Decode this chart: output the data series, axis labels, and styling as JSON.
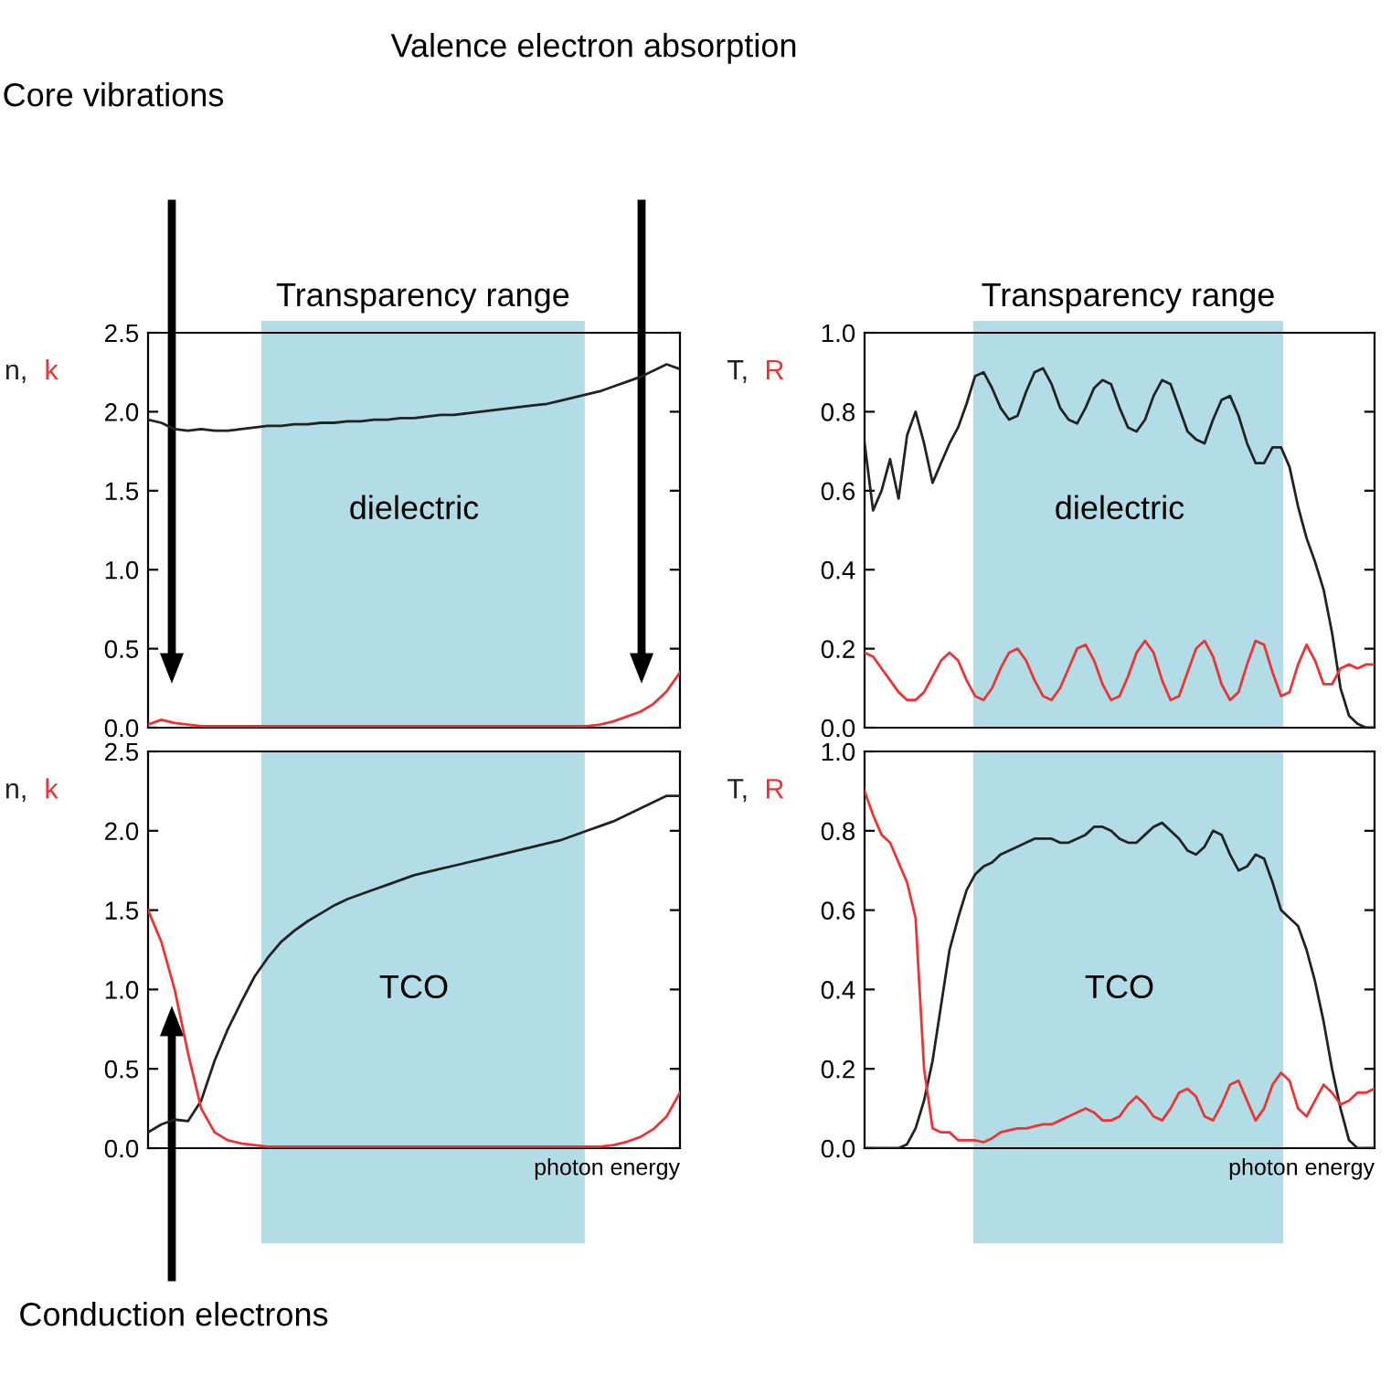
{
  "chart_data": [
    {
      "type": "line",
      "ylabel": "n, k",
      "categories": [
        null,
        null,
        null,
        null,
        null,
        null,
        null,
        null,
        null,
        null,
        null,
        null,
        null,
        null,
        null,
        null,
        null,
        null,
        null,
        null,
        null,
        null,
        null,
        null,
        null,
        null,
        null,
        null,
        null,
        null,
        null,
        null,
        null,
        null,
        null,
        null,
        null,
        null,
        null,
        null,
        null
      ],
      "series": [
        {
          "color": "#222222",
          "values": [
            1.95,
            1.93,
            1.89,
            1.88,
            1.89,
            1.88,
            1.88,
            1.89,
            1.9,
            1.91,
            1.91,
            1.92,
            1.92,
            1.93,
            1.93,
            1.94,
            1.94,
            1.95,
            1.95,
            1.96,
            1.96,
            1.97,
            1.98,
            1.98,
            1.99,
            2.0,
            2.01,
            2.02,
            2.03,
            2.04,
            2.05,
            2.07,
            2.09,
            2.11,
            2.13,
            2.16,
            2.19,
            2.22,
            2.26,
            2.3,
            2.27
          ]
        },
        {
          "color": "#ee3333",
          "values": [
            0.02,
            0.05,
            0.03,
            0.02,
            0.01,
            0.01,
            0.01,
            0.01,
            0.01,
            0.01,
            0.01,
            0.01,
            0.01,
            0.01,
            0.01,
            0.01,
            0.01,
            0.01,
            0.01,
            0.01,
            0.01,
            0.01,
            0.01,
            0.01,
            0.01,
            0.01,
            0.01,
            0.01,
            0.01,
            0.01,
            0.01,
            0.01,
            0.01,
            0.01,
            0.02,
            0.04,
            0.07,
            0.1,
            0.15,
            0.23,
            0.35
          ]
        }
      ],
      "ylim": [
        0,
        2.5
      ],
      "yticks": [
        {
          "value": 0,
          "label": "0.0"
        },
        0.5,
        {
          "value": 1,
          "label": "1.0"
        },
        1.5,
        {
          "value": 2,
          "label": "2.0"
        },
        2.5
      ],
      "tick_labels": "y",
      "annotations": [
        "Core vibrations",
        "Valence electron absorption",
        "Transparency range",
        "dielectric"
      ]
    },
    {
      "type": "line",
      "ylabel": "T, R",
      "categories": [
        null,
        null,
        null,
        null,
        null,
        null,
        null,
        null,
        null,
        null,
        null,
        null,
        null,
        null,
        null,
        null,
        null,
        null,
        null,
        null,
        null,
        null,
        null,
        null,
        null,
        null,
        null,
        null,
        null,
        null,
        null,
        null,
        null,
        null,
        null,
        null,
        null,
        null,
        null,
        null,
        null,
        null,
        null,
        null,
        null,
        null,
        null,
        null,
        null,
        null,
        null,
        null,
        null,
        null,
        null,
        null,
        null,
        null,
        null,
        null,
        null
      ],
      "series": [
        {
          "color": "#222222",
          "values": [
            0.72,
            0.55,
            0.6,
            0.68,
            0.58,
            0.74,
            0.8,
            0.72,
            0.62,
            0.67,
            0.72,
            0.76,
            0.82,
            0.89,
            0.9,
            0.86,
            0.81,
            0.78,
            0.79,
            0.85,
            0.9,
            0.91,
            0.87,
            0.81,
            0.78,
            0.77,
            0.81,
            0.86,
            0.88,
            0.87,
            0.81,
            0.76,
            0.75,
            0.78,
            0.84,
            0.88,
            0.87,
            0.81,
            0.75,
            0.73,
            0.72,
            0.78,
            0.83,
            0.84,
            0.79,
            0.72,
            0.67,
            0.67,
            0.71,
            0.71,
            0.66,
            0.56,
            0.48,
            0.42,
            0.35,
            0.24,
            0.1,
            0.03,
            0.01,
            0,
            0
          ]
        },
        {
          "color": "#ee3333",
          "values": [
            0.19,
            0.18,
            0.15,
            0.12,
            0.09,
            0.07,
            0.07,
            0.09,
            0.13,
            0.17,
            0.19,
            0.17,
            0.12,
            0.08,
            0.07,
            0.1,
            0.15,
            0.19,
            0.2,
            0.17,
            0.12,
            0.08,
            0.07,
            0.1,
            0.15,
            0.2,
            0.21,
            0.17,
            0.11,
            0.07,
            0.08,
            0.13,
            0.19,
            0.22,
            0.19,
            0.12,
            0.07,
            0.08,
            0.14,
            0.2,
            0.22,
            0.18,
            0.11,
            0.07,
            0.09,
            0.16,
            0.22,
            0.21,
            0.14,
            0.08,
            0.09,
            0.16,
            0.21,
            0.17,
            0.11,
            0.11,
            0.15,
            0.16,
            0.15,
            0.16,
            0.16
          ]
        }
      ],
      "ylim": [
        0,
        1
      ],
      "yticks": [
        {
          "value": 0,
          "label": "0.0"
        },
        0.2,
        0.4,
        0.6,
        0.8,
        {
          "value": 1,
          "label": "1.0"
        }
      ],
      "tick_labels": "y",
      "annotations": [
        "Transparency range",
        "dielectric"
      ]
    },
    {
      "type": "line",
      "ylabel": "n, k",
      "xlabel": "photon energy",
      "categories": [
        null,
        null,
        null,
        null,
        null,
        null,
        null,
        null,
        null,
        null,
        null,
        null,
        null,
        null,
        null,
        null,
        null,
        null,
        null,
        null,
        null,
        null,
        null,
        null,
        null,
        null,
        null,
        null,
        null,
        null,
        null,
        null,
        null,
        null,
        null,
        null,
        null,
        null,
        null,
        null,
        null
      ],
      "series": [
        {
          "color": "#222222",
          "values": [
            0.1,
            0.15,
            0.18,
            0.17,
            0.3,
            0.55,
            0.75,
            0.92,
            1.08,
            1.2,
            1.3,
            1.37,
            1.43,
            1.48,
            1.53,
            1.57,
            1.6,
            1.63,
            1.66,
            1.69,
            1.72,
            1.74,
            1.76,
            1.78,
            1.8,
            1.82,
            1.84,
            1.86,
            1.88,
            1.9,
            1.92,
            1.94,
            1.97,
            2.0,
            2.03,
            2.06,
            2.1,
            2.14,
            2.18,
            2.22,
            2.22
          ]
        },
        {
          "color": "#ee3333",
          "values": [
            1.5,
            1.3,
            1.0,
            0.6,
            0.25,
            0.1,
            0.05,
            0.03,
            0.02,
            0.01,
            0.01,
            0.01,
            0.01,
            0.01,
            0.01,
            0.01,
            0.01,
            0.01,
            0.01,
            0.01,
            0.01,
            0.01,
            0.01,
            0.01,
            0.01,
            0.01,
            0.01,
            0.01,
            0.01,
            0.01,
            0.01,
            0.01,
            0.01,
            0.01,
            0.01,
            0.02,
            0.04,
            0.07,
            0.12,
            0.2,
            0.35
          ]
        }
      ],
      "ylim": [
        0,
        2.5
      ],
      "yticks": [
        {
          "value": 0,
          "label": "0.0"
        },
        0.5,
        {
          "value": 1,
          "label": "1.0"
        },
        1.5,
        {
          "value": 2,
          "label": "2.0"
        },
        2.5
      ],
      "tick_labels": "y",
      "annotations": [
        "Conduction electrons",
        "TCO"
      ]
    },
    {
      "type": "line",
      "ylabel": "T, R",
      "xlabel": "photon energy",
      "categories": [
        null,
        null,
        null,
        null,
        null,
        null,
        null,
        null,
        null,
        null,
        null,
        null,
        null,
        null,
        null,
        null,
        null,
        null,
        null,
        null,
        null,
        null,
        null,
        null,
        null,
        null,
        null,
        null,
        null,
        null,
        null,
        null,
        null,
        null,
        null,
        null,
        null,
        null,
        null,
        null,
        null,
        null,
        null,
        null,
        null,
        null,
        null,
        null,
        null,
        null,
        null,
        null,
        null,
        null,
        null,
        null,
        null,
        null,
        null,
        null,
        null
      ],
      "series": [
        {
          "color": "#222222",
          "values": [
            0,
            0,
            0,
            0,
            0,
            0.01,
            0.05,
            0.12,
            0.22,
            0.36,
            0.5,
            0.58,
            0.65,
            0.69,
            0.71,
            0.72,
            0.74,
            0.75,
            0.76,
            0.77,
            0.78,
            0.78,
            0.78,
            0.77,
            0.77,
            0.78,
            0.79,
            0.81,
            0.81,
            0.8,
            0.78,
            0.77,
            0.77,
            0.79,
            0.81,
            0.82,
            0.8,
            0.78,
            0.75,
            0.74,
            0.76,
            0.8,
            0.79,
            0.74,
            0.7,
            0.71,
            0.74,
            0.73,
            0.67,
            0.6,
            0.58,
            0.56,
            0.5,
            0.42,
            0.32,
            0.2,
            0.1,
            0.02,
            0,
            0,
            0
          ]
        },
        {
          "color": "#ee3333",
          "values": [
            0.9,
            0.84,
            0.79,
            0.77,
            0.72,
            0.67,
            0.58,
            0.2,
            0.05,
            0.04,
            0.04,
            0.02,
            0.02,
            0.02,
            0.015,
            0.025,
            0.04,
            0.045,
            0.05,
            0.05,
            0.055,
            0.06,
            0.06,
            0.07,
            0.08,
            0.09,
            0.1,
            0.09,
            0.07,
            0.07,
            0.08,
            0.11,
            0.13,
            0.11,
            0.08,
            0.07,
            0.1,
            0.14,
            0.15,
            0.13,
            0.08,
            0.07,
            0.11,
            0.16,
            0.17,
            0.12,
            0.07,
            0.1,
            0.16,
            0.19,
            0.17,
            0.1,
            0.08,
            0.12,
            0.16,
            0.14,
            0.11,
            0.12,
            0.14,
            0.14,
            0.15
          ]
        }
      ],
      "ylim": [
        0,
        1
      ],
      "yticks": [
        {
          "value": 0,
          "label": "0.0"
        },
        0.2,
        0.4,
        0.6,
        0.8,
        {
          "value": 1,
          "label": "1.0"
        }
      ],
      "tick_labels": "y",
      "annotations": [
        "TCO"
      ]
    }
  ]
}
